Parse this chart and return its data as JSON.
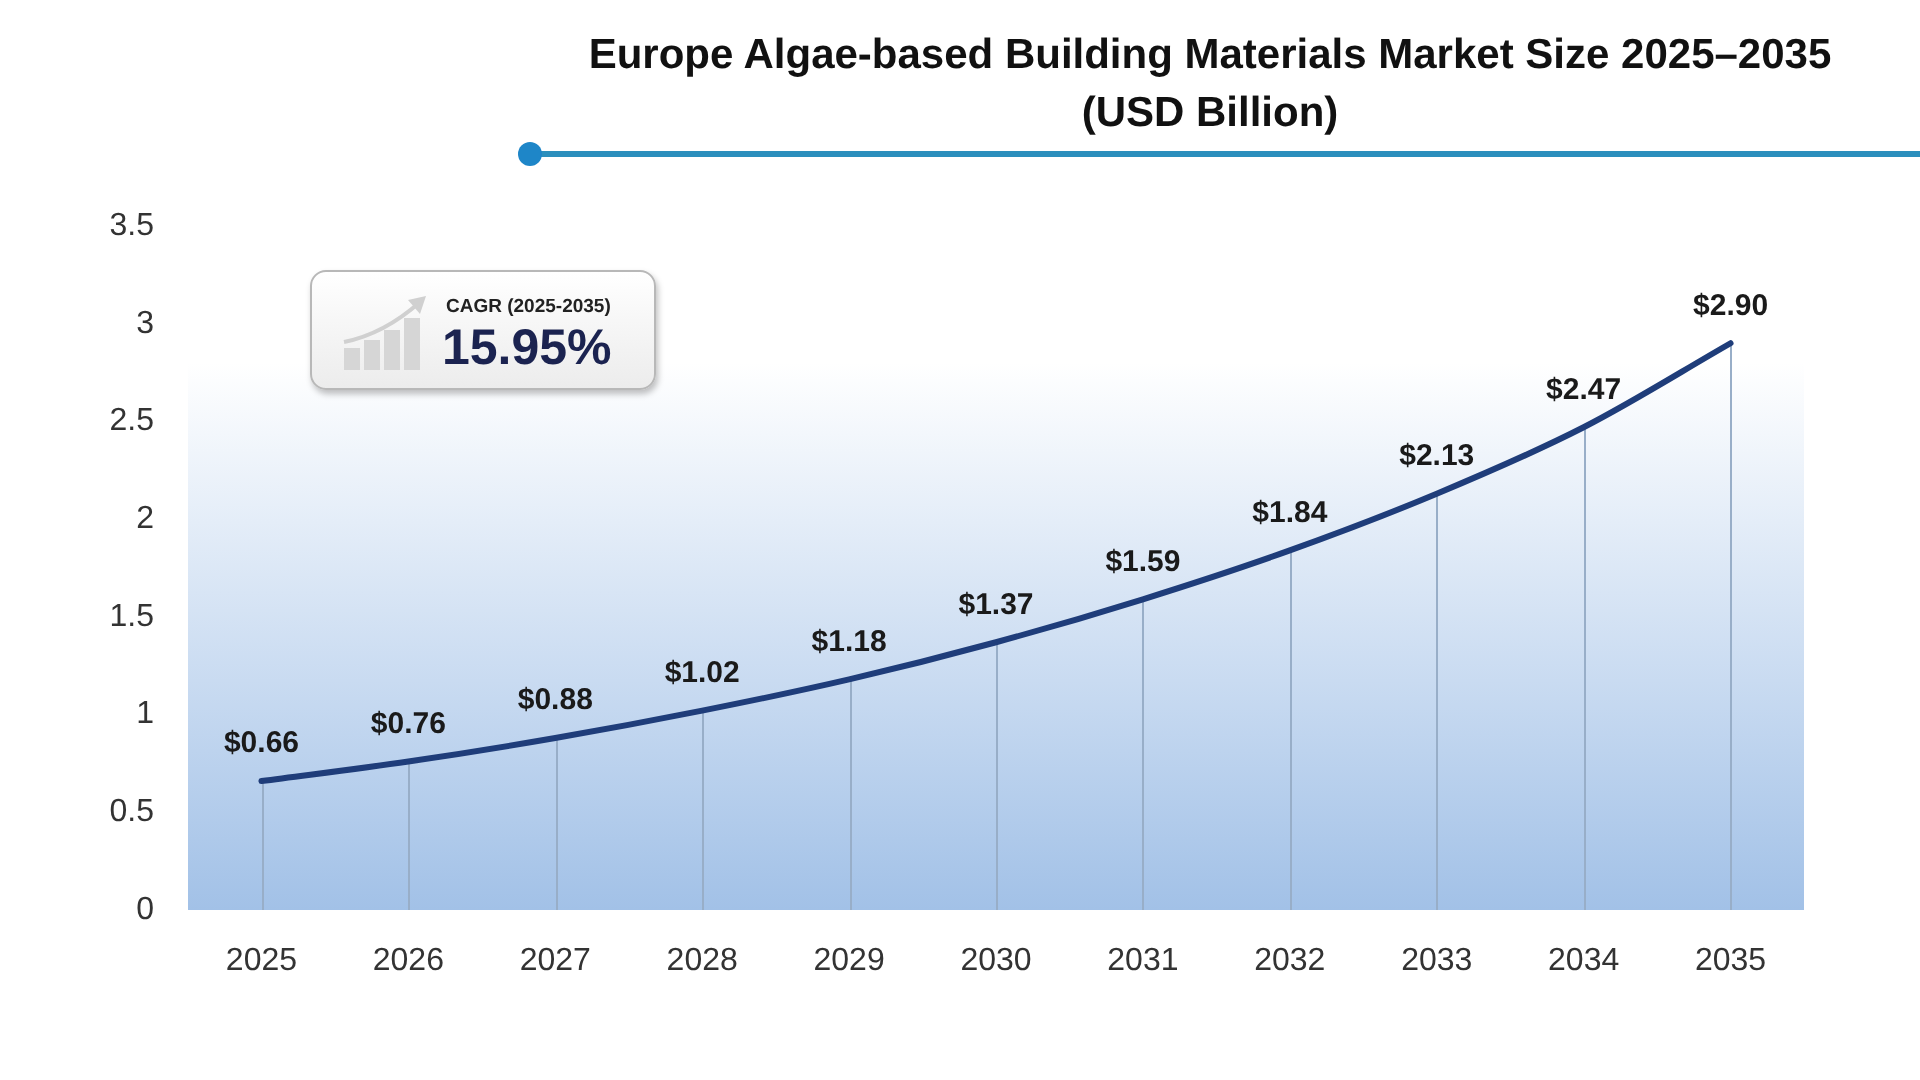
{
  "chart_data": {
    "type": "line",
    "title": "Europe Algae-based Building Materials Market Size 2025–2035 (USD Billion)",
    "categories": [
      "2025",
      "2026",
      "2027",
      "2028",
      "2029",
      "2030",
      "2031",
      "2032",
      "2033",
      "2034",
      "2035"
    ],
    "values": [
      0.66,
      0.76,
      0.88,
      1.02,
      1.18,
      1.37,
      1.59,
      1.84,
      2.13,
      2.47,
      2.9
    ],
    "value_labels": [
      "$0.66",
      "$0.76",
      "$0.88",
      "$1.02",
      "$1.18",
      "$1.37",
      "$1.59",
      "$1.84",
      "$2.13",
      "$2.47",
      "$2.90"
    ],
    "color": "#1f3d7a",
    "ylim": [
      0,
      3.5
    ],
    "yticks": [
      0,
      0.5,
      1,
      1.5,
      2,
      2.5,
      3,
      3.5
    ],
    "marker": "none",
    "annotations": [
      "CAGR (2025-2035)",
      "15.95%"
    ]
  }
}
